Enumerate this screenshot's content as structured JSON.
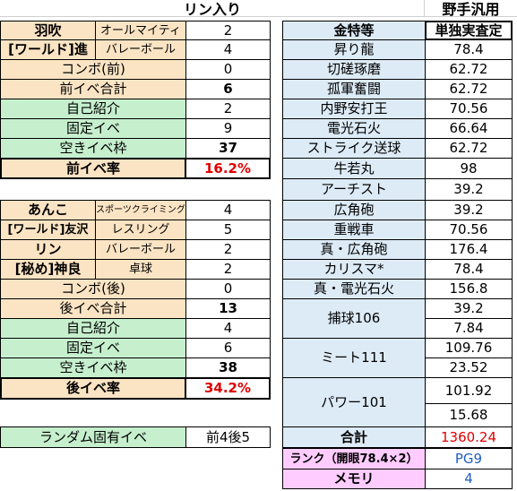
{
  "title": "リン入り",
  "right_title": "野手汎用",
  "pre_table": {
    "rows": [
      {
        "name": "羽吹",
        "type": "オールマイティ",
        "val": "2"
      },
      {
        "name": "[ワールド]進",
        "type": "バレーボール",
        "val": "4"
      },
      {
        "name": "コンボ(前)",
        "val": "0"
      },
      {
        "name": "前イベ合計",
        "val": "6"
      },
      {
        "name": "自己紹介",
        "val": "2"
      },
      {
        "name": "固定イベ",
        "val": "9"
      },
      {
        "name": "空きイベ枠",
        "val": "37"
      },
      {
        "name": "前イベ率",
        "val": "16.2%"
      }
    ]
  },
  "post_table": {
    "rows": [
      {
        "name": "あんこ",
        "type": "スポーツクライミング",
        "val": "4"
      },
      {
        "name": "[ワールド]友沢",
        "type": "レスリング",
        "val": "5"
      },
      {
        "name": "リン",
        "type": "バレーボール",
        "val": "2"
      },
      {
        "name": "[秘め]神良",
        "type": "卓球",
        "val": "2"
      },
      {
        "name": "コンボ(後)",
        "val": "0"
      },
      {
        "name": "後イベ合計",
        "val": "13"
      },
      {
        "name": "自己紹介",
        "val": "4"
      },
      {
        "name": "固定イベ",
        "val": "6"
      },
      {
        "name": "空きイベ枠",
        "val": "38"
      },
      {
        "name": "後イベ率",
        "val": "34.2%"
      }
    ]
  },
  "random_event": {
    "label": "ランダム固有イベ",
    "val": "前4後5"
  },
  "skills_table": {
    "header_name": "金特等",
    "header_val": "単独実査定",
    "rows": [
      {
        "name": "昇り龍",
        "val": "78.4"
      },
      {
        "name": "切磋琢磨",
        "val": "62.72"
      },
      {
        "name": "孤軍奮闘",
        "val": "62.72"
      },
      {
        "name": "内野安打王",
        "val": "70.56"
      },
      {
        "name": "電光石火",
        "val": "66.64"
      },
      {
        "name": "ストライク送球",
        "val": "62.72"
      },
      {
        "name": "牛若丸",
        "val": "98"
      },
      {
        "name": "アーチスト",
        "val": "39.2"
      },
      {
        "name": "広角砲",
        "val": "39.2"
      },
      {
        "name": "重戦車",
        "val": "70.56"
      },
      {
        "name": "真・広角砲",
        "val": "176.4"
      },
      {
        "name": "カリスマ*",
        "val": "78.4"
      },
      {
        "name": "真・電光石火",
        "val": "156.8"
      }
    ],
    "merged": [
      {
        "name": "捕球106",
        "vals": [
          "39.2",
          "7.84"
        ]
      },
      {
        "name": "ミート111",
        "vals": [
          "109.76",
          "23.52"
        ]
      },
      {
        "name": "パワー101",
        "vals": [
          "101.92",
          "15.68"
        ]
      }
    ],
    "total_label": "合計",
    "total_val": "1360.24",
    "rank_label": "ランク（開眼78.4×2）",
    "rank_val": "PG9",
    "memory_label": "メモリ",
    "memory_val": "4"
  },
  "colors": {
    "tan": "#fbe4c4",
    "green": "#c6efce",
    "blue": "#ddebf7",
    "pink": "#ffccff",
    "red": "#e00000",
    "accent_blue": "#1f5fbf"
  }
}
